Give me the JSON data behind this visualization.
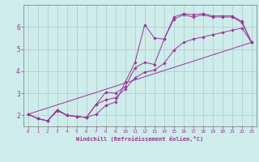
{
  "xlabel": "Windchill (Refroidissement éolien,°C)",
  "background_color": "#ceecea",
  "grid_color": "#aacccc",
  "line_color": "#993399",
  "xlim": [
    -0.5,
    23.5
  ],
  "ylim": [
    1.5,
    7.0
  ],
  "yticks": [
    2,
    3,
    4,
    5,
    6
  ],
  "xticks": [
    0,
    1,
    2,
    3,
    4,
    5,
    6,
    7,
    8,
    9,
    10,
    11,
    12,
    13,
    14,
    15,
    16,
    17,
    18,
    19,
    20,
    21,
    22,
    23
  ],
  "lines": [
    {
      "x": [
        0,
        1,
        2,
        3,
        4,
        5,
        6,
        7,
        8,
        9,
        10,
        11,
        12,
        13,
        14,
        15,
        16,
        17,
        18,
        19,
        20,
        21,
        22,
        23
      ],
      "y": [
        2.05,
        1.85,
        1.75,
        2.2,
        2.0,
        1.95,
        1.9,
        2.05,
        2.45,
        2.6,
        3.5,
        4.4,
        6.1,
        5.5,
        5.45,
        6.45,
        6.6,
        6.55,
        6.6,
        6.5,
        6.5,
        6.5,
        6.25,
        5.3
      ],
      "has_markers": true
    },
    {
      "x": [
        0,
        1,
        2,
        3,
        4,
        5,
        6,
        7,
        8,
        9,
        10,
        11,
        12,
        13,
        14,
        15,
        16,
        17,
        18,
        19,
        20,
        21,
        22,
        23
      ],
      "y": [
        2.05,
        1.85,
        1.75,
        2.25,
        2.0,
        1.95,
        1.9,
        2.5,
        3.05,
        3.0,
        3.3,
        4.15,
        4.4,
        4.3,
        5.45,
        6.35,
        6.55,
        6.45,
        6.55,
        6.45,
        6.45,
        6.45,
        6.2,
        5.3
      ],
      "has_markers": true
    },
    {
      "x": [
        0,
        1,
        2,
        3,
        4,
        5,
        6,
        7,
        8,
        9,
        10,
        11,
        12,
        13,
        14,
        15,
        16,
        17,
        18,
        19,
        20,
        21,
        22,
        23
      ],
      "y": [
        2.05,
        1.85,
        1.75,
        2.25,
        2.0,
        1.95,
        1.9,
        2.5,
        2.7,
        2.8,
        3.2,
        3.7,
        3.95,
        4.05,
        4.35,
        4.95,
        5.3,
        5.45,
        5.55,
        5.65,
        5.75,
        5.85,
        5.95,
        5.3
      ],
      "has_markers": true
    },
    {
      "x": [
        0,
        23
      ],
      "y": [
        2.05,
        5.3
      ],
      "has_markers": false
    }
  ]
}
